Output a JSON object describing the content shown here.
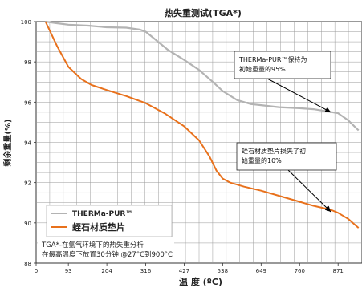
{
  "chart_data": {
    "type": "line",
    "title": "热失重测试(TGA*)",
    "xlabel": "温 度 (ºC)",
    "ylabel": "剩余重量(%)",
    "x_ticks": [
      0,
      93,
      204,
      316,
      427,
      538,
      649,
      760,
      871
    ],
    "x_tick_labels": [
      "0",
      "93",
      "204",
      "316",
      "427",
      "538",
      "649",
      "760",
      "871"
    ],
    "y_ticks": [
      88,
      90,
      92,
      94,
      96,
      98,
      100
    ],
    "y_tick_labels": [
      "88",
      "90",
      "92",
      "94",
      "96",
      "98",
      "100"
    ],
    "xlim": [
      0,
      940
    ],
    "ylim": [
      88,
      100
    ],
    "grid": true,
    "legend_position": "bottom-left",
    "series": [
      {
        "name": "THERMa-PUR™",
        "color": "#b3b3b3",
        "points": [
          [
            27,
            100
          ],
          [
            60,
            99.92
          ],
          [
            93,
            99.85
          ],
          [
            150,
            99.8
          ],
          [
            204,
            99.72
          ],
          [
            260,
            99.7
          ],
          [
            300,
            99.6
          ],
          [
            316,
            99.5
          ],
          [
            345,
            99.1
          ],
          [
            380,
            98.6
          ],
          [
            427,
            98.1
          ],
          [
            470,
            97.6
          ],
          [
            510,
            97.0
          ],
          [
            538,
            96.55
          ],
          [
            580,
            96.1
          ],
          [
            620,
            95.9
          ],
          [
            649,
            95.85
          ],
          [
            700,
            95.75
          ],
          [
            760,
            95.7
          ],
          [
            800,
            95.65
          ],
          [
            871,
            95.45
          ],
          [
            900,
            95.1
          ],
          [
            930,
            94.6
          ]
        ]
      },
      {
        "name": "蛭石材质垫片",
        "color": "#e8711c",
        "points": [
          [
            27,
            100
          ],
          [
            60,
            98.8
          ],
          [
            93,
            97.75
          ],
          [
            130,
            97.15
          ],
          [
            160,
            96.85
          ],
          [
            204,
            96.6
          ],
          [
            260,
            96.3
          ],
          [
            316,
            95.95
          ],
          [
            370,
            95.45
          ],
          [
            427,
            94.8
          ],
          [
            470,
            94.1
          ],
          [
            500,
            93.3
          ],
          [
            520,
            92.6
          ],
          [
            538,
            92.2
          ],
          [
            560,
            92.0
          ],
          [
            600,
            91.8
          ],
          [
            649,
            91.6
          ],
          [
            700,
            91.35
          ],
          [
            760,
            91.05
          ],
          [
            800,
            90.85
          ],
          [
            850,
            90.65
          ],
          [
            871,
            90.5
          ],
          [
            900,
            90.2
          ],
          [
            930,
            89.75
          ]
        ]
      }
    ],
    "annotations": [
      {
        "id": "therma",
        "lines": [
          "THERMa-PUR™保持为",
          "初始重量的95%"
        ],
        "target": [
          850,
          95.5
        ]
      },
      {
        "id": "vermiculite",
        "lines": [
          "蛭石材质垫片损失了初",
          "始重量的10%"
        ],
        "target": [
          850,
          90.55
        ]
      }
    ],
    "footnote": [
      "TGA*-在氩气环境下的热失重分析",
      "在最高温度下放置30分钟 @27°C到900°C"
    ]
  }
}
